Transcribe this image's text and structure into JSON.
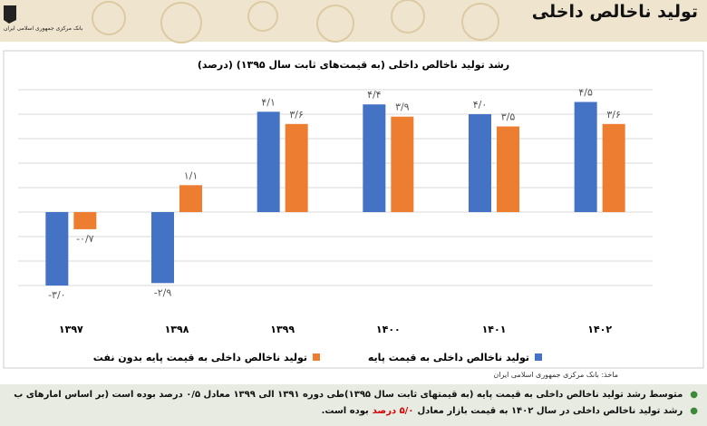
{
  "header": {
    "title": "تولید ناخالص داخلی",
    "logo_text": "بانک مرکزی جمهوری اسلامی ایران"
  },
  "chart_data": {
    "type": "bar",
    "title": "رشد تولید ناخالص داخلی (به قیمت‌های ثابت سال ۱۳۹۵) (درصد)",
    "categories": [
      "۱۳۹۷",
      "۱۳۹۸",
      "۱۳۹۹",
      "۱۴۰۰",
      "۱۴۰۱",
      "۱۴۰۲"
    ],
    "series": [
      {
        "name": "تولید ناخالص داخلی به قیمت پایه",
        "color": "#4472c4",
        "values": [
          -3.0,
          -2.9,
          4.1,
          4.4,
          4.0,
          4.5
        ],
        "value_labels": [
          "-۳/۰",
          "-۲/۹",
          "۴/۱",
          "۴/۴",
          "۴/۰",
          "۴/۵"
        ]
      },
      {
        "name": "تولید ناخالص داخلی به قیمت پایه بدون نفت",
        "color": "#ed7d31",
        "values": [
          -0.7,
          1.1,
          3.6,
          3.9,
          3.5,
          3.6
        ],
        "value_labels": [
          "-۰/۷",
          "۱/۱",
          "۳/۶",
          "۳/۹",
          "۳/۵",
          "۳/۶"
        ]
      }
    ],
    "ylim": [
      -3.5,
      5.5
    ],
    "yticks": [
      -3,
      -2,
      -1,
      0,
      1,
      2,
      3,
      4,
      5
    ],
    "grid": true,
    "legend": "bottom"
  },
  "source": "ماخذ: بانک مرکزی جمهوری اسلامی ایران",
  "notes": [
    [
      "متوسط رشد تولید ناخالص داخلی به قیمت پایه (به قیمتهای ثابت سال ۱۳۹۵)طی دوره ۱۳۹۱ الی ۱۳۹۹ معادل ۰/۵ درصد بوده است (بر اساس آمارهای ب"
    ],
    [
      "رشد تولید ناخالص داخلی در سال ۱۴۰۲ به قیمت بازار معادل",
      "۵/۰ درصد",
      "بوده است."
    ]
  ]
}
